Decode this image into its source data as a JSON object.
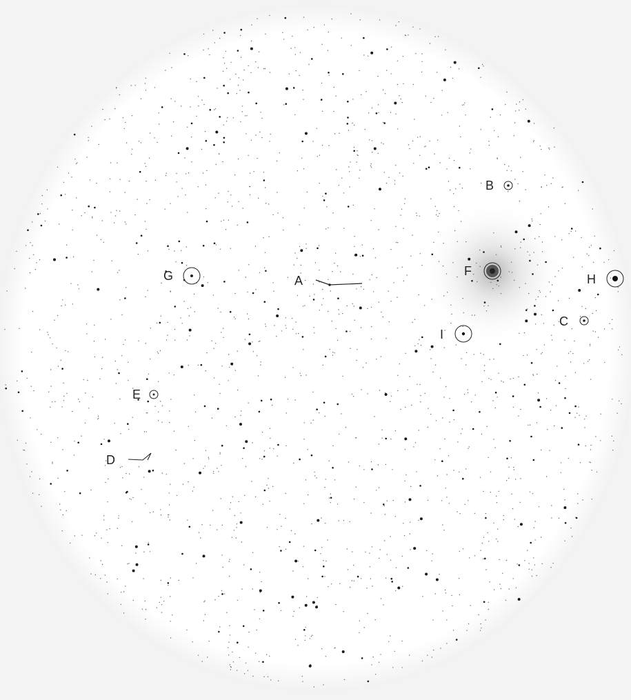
{
  "image": {
    "background_color": "#f4f4f4",
    "sky_color": "#ffffff",
    "star_color": "#1a1a1a"
  },
  "objects": [
    {
      "id": "A",
      "label": "A",
      "marker": "line-trail"
    },
    {
      "id": "B",
      "label": "B",
      "marker": "small-circle"
    },
    {
      "id": "C",
      "label": "C",
      "marker": "small-circle"
    },
    {
      "id": "D",
      "label": "D",
      "marker": "line-trail"
    },
    {
      "id": "E",
      "label": "E",
      "marker": "small-circle"
    },
    {
      "id": "F",
      "label": "F",
      "marker": "bright-star-with-halo"
    },
    {
      "id": "G",
      "label": "G",
      "marker": "circle"
    },
    {
      "id": "H",
      "label": "H",
      "marker": "circle"
    },
    {
      "id": "I",
      "label": "I",
      "marker": "circle"
    }
  ]
}
